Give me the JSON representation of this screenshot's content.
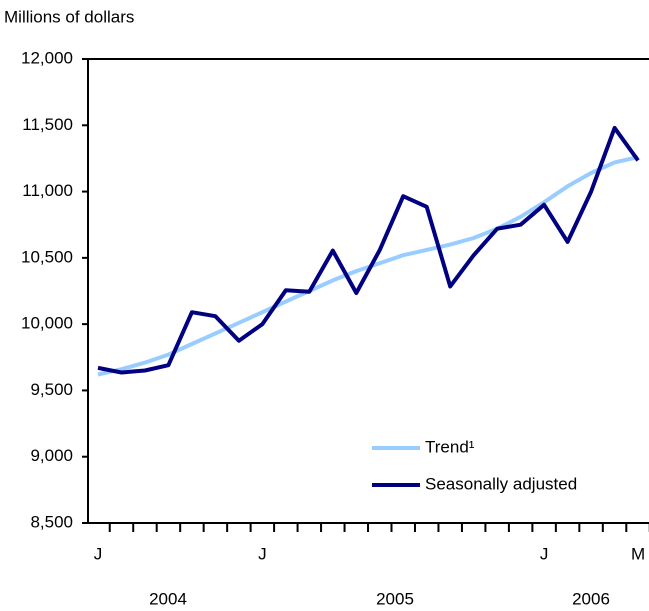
{
  "chart_data": {
    "type": "line",
    "y_axis_label": "Millions of dollars",
    "categories": [
      "J",
      null,
      null,
      null,
      null,
      null,
      null,
      "J",
      null,
      null,
      null,
      null,
      null,
      null,
      null,
      null,
      null,
      null,
      null,
      "J",
      null,
      null,
      null,
      "M"
    ],
    "x_group_labels": [
      "2004",
      "2005",
      "2006"
    ],
    "series": [
      {
        "name": "Trend¹",
        "color": "#99ccff",
        "values": [
          9620,
          9660,
          9710,
          9770,
          9850,
          9930,
          10010,
          10090,
          10170,
          10250,
          10330,
          10400,
          10460,
          10520,
          10560,
          10600,
          10650,
          10720,
          10810,
          10920,
          11040,
          11140,
          11220,
          11260
        ]
      },
      {
        "name": "Seasonally adjusted",
        "color": "#000080",
        "values": [
          9670,
          9635,
          9650,
          9690,
          10090,
          10060,
          9875,
          10000,
          10255,
          10245,
          10555,
          10235,
          10560,
          10965,
          10885,
          10285,
          10520,
          10720,
          10750,
          10900,
          10620,
          11000,
          11480,
          11235
        ]
      }
    ],
    "ylim": [
      8500,
      12000
    ],
    "yticks": [
      {
        "value": 8500,
        "label": "8,500"
      },
      {
        "value": 9000,
        "label": "9,000"
      },
      {
        "value": 9500,
        "label": "9,500"
      },
      {
        "value": 10000,
        "label": "10,000"
      },
      {
        "value": 10500,
        "label": "10,500"
      },
      {
        "value": 11000,
        "label": "11,000"
      },
      {
        "value": 11500,
        "label": "11,500"
      },
      {
        "value": 12000,
        "label": "12,000"
      }
    ],
    "grid": false,
    "legend_position": "lower-right"
  }
}
